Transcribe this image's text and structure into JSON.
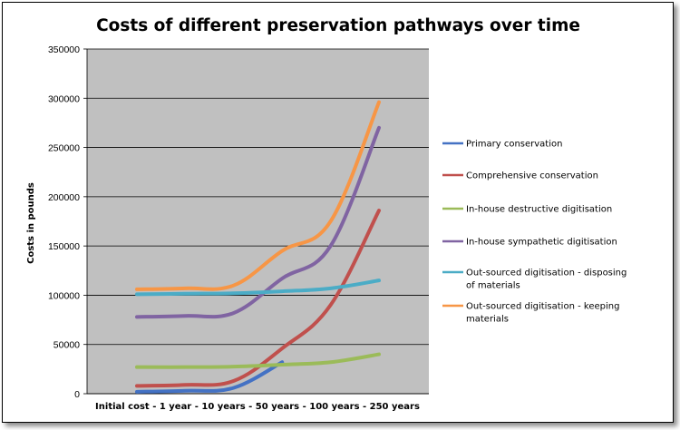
{
  "chart_data": {
    "type": "line",
    "title": "Costs of different preservation pathways over time",
    "xlabel": "",
    "ylabel": "Costs in pounds",
    "categories": [
      "Initial cost",
      "1 year",
      "10 years",
      "50 years",
      "100 years",
      "250 years"
    ],
    "x_axis_text": "Initial cost - 1 year - 10 years - 50 years - 100 years - 250 years",
    "ylim": [
      0,
      350000
    ],
    "yticks": [
      "0",
      "50000",
      "100000",
      "150000",
      "200000",
      "250000",
      "300000",
      "350000"
    ],
    "grid": true,
    "legend_position": "right",
    "series": [
      {
        "name": "Primary conservation",
        "color": "#4472C4",
        "values": [
          2000,
          3000,
          6000,
          32000,
          null,
          null
        ]
      },
      {
        "name": "Comprehensive conservation",
        "color": "#C0504D",
        "values": [
          8000,
          9000,
          13000,
          46000,
          90000,
          186000
        ]
      },
      {
        "name": "In-house destructive digitisation",
        "color": "#9BBB59",
        "values": [
          27000,
          27000,
          27500,
          29500,
          32000,
          40000
        ]
      },
      {
        "name": "In-house sympathetic  digitisation",
        "color": "#8064A2",
        "values": [
          78000,
          79000,
          82000,
          117000,
          150000,
          270000
        ]
      },
      {
        "name": "Out-sourced digitisation  - disposing of materials",
        "color": "#4BACC6",
        "values": [
          101000,
          101500,
          102000,
          104000,
          107000,
          115000
        ]
      },
      {
        "name": "Out-sourced digitisation  - keeping materials",
        "color": "#F79646",
        "values": [
          106000,
          107000,
          110000,
          145000,
          175000,
          296000
        ]
      }
    ]
  }
}
